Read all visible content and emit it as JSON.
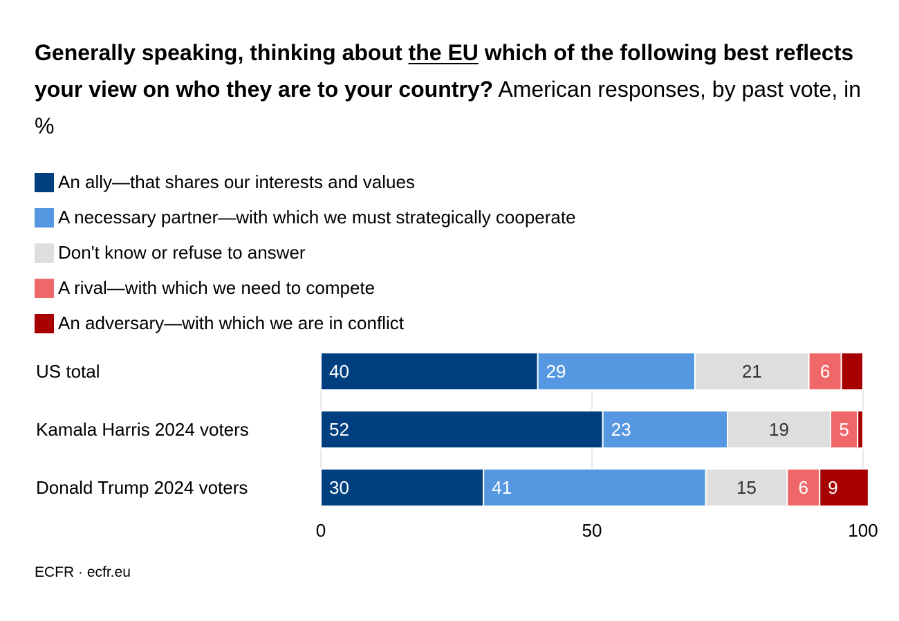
{
  "title": {
    "bold_part1": "Generally speaking, thinking about ",
    "bold_underlined": "the EU",
    "bold_part2": " which of the following best reflects your view on who they are to your country?",
    "subtitle": " American responses, by past vote, in %"
  },
  "source": "ECFR · ecfr.eu",
  "chart_data": {
    "type": "bar",
    "orientation": "horizontal",
    "stacked": true,
    "categories": [
      "US total",
      "Kamala Harris 2024 voters",
      "Donald Trump 2024 voters"
    ],
    "series": [
      {
        "name": "An ally—that shares our interests and values",
        "color": "#003f7f",
        "values": [
          40,
          52,
          30
        ],
        "labels": [
          "40",
          "52",
          "30"
        ]
      },
      {
        "name": "A necessary partner—with which we must strategically cooperate",
        "color": "#5598e1",
        "values": [
          29,
          23,
          41
        ],
        "labels": [
          "29",
          "23",
          "41"
        ]
      },
      {
        "name": "Don't know or refuse to answer",
        "color": "#dedede",
        "values": [
          21,
          19,
          15
        ],
        "labels": [
          "21",
          "19",
          "15"
        ]
      },
      {
        "name": "A rival—with which we need to compete",
        "color": "#f06769",
        "values": [
          6,
          5,
          6
        ],
        "labels": [
          "6",
          "5",
          "6"
        ]
      },
      {
        "name": "An adversary—with which we are in conflict",
        "color": "#a60000",
        "values": [
          4,
          1,
          9
        ],
        "labels": [
          "",
          "",
          "9"
        ]
      }
    ],
    "xlim": [
      0,
      100
    ],
    "xticks": [
      "0",
      "50",
      "100"
    ],
    "grid": true,
    "legend_position": "top"
  }
}
